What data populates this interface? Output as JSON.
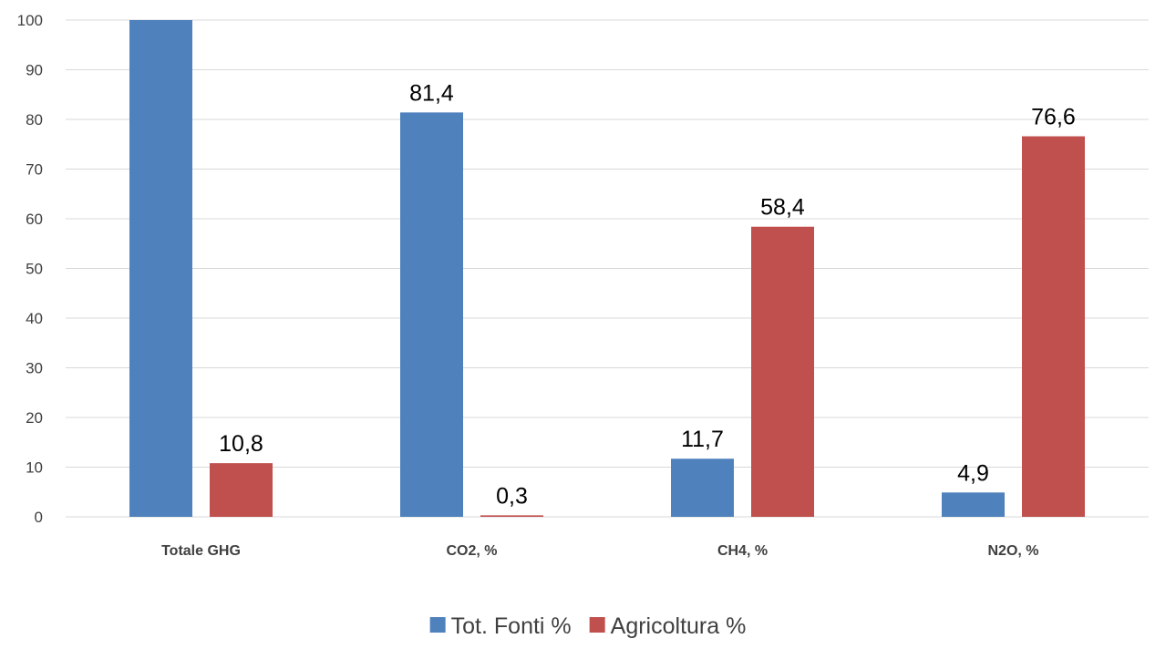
{
  "chart_data": {
    "type": "bar",
    "categories": [
      "Totale GHG",
      "CO2, %",
      "CH4, %",
      "N2O, %"
    ],
    "series": [
      {
        "name": "Tot. Fonti %",
        "color": "#4f81bd",
        "values": [
          100,
          81.4,
          11.7,
          4.9
        ],
        "labels": [
          "",
          "81,4",
          "11,7",
          "4,9"
        ]
      },
      {
        "name": "Agricoltura %",
        "color": "#c0504d",
        "values": [
          10.8,
          0.3,
          58.4,
          76.6
        ],
        "labels": [
          "10,8",
          "0,3",
          "58,4",
          "76,6"
        ]
      }
    ],
    "ylim": [
      0,
      100
    ],
    "yticks": [
      "0",
      "10",
      "20",
      "30",
      "40",
      "50",
      "60",
      "70",
      "80",
      "90",
      "100"
    ],
    "grid": true,
    "legend_position": "bottom"
  }
}
